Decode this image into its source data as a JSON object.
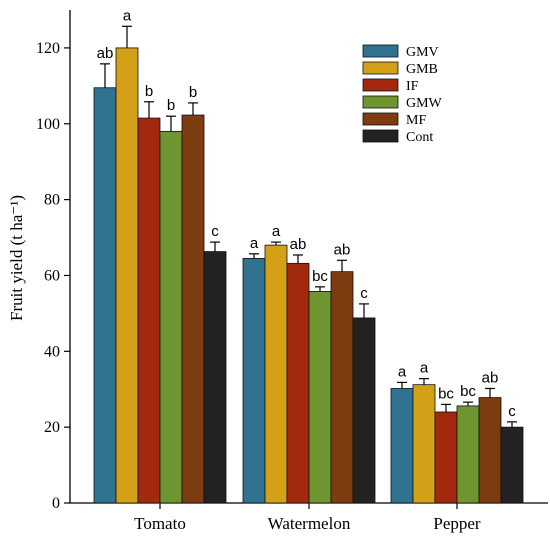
{
  "chart_data": {
    "type": "bar",
    "categories": [
      "Tomato",
      "Watermelon",
      "Pepper"
    ],
    "ylabel": "Fruit yield (t ha⁻¹)",
    "xlabel": "",
    "ylim": [
      0,
      130
    ],
    "yticks": [
      0,
      20,
      40,
      60,
      80,
      100,
      120
    ],
    "grid": false,
    "legend_position": "top-right",
    "series": [
      {
        "name": "GMV",
        "color": "#2f7391",
        "values": [
          109.5,
          64.5,
          30.2
        ],
        "errors": [
          6.3,
          1.2,
          1.6
        ],
        "letters": [
          "ab",
          "a",
          "a"
        ]
      },
      {
        "name": "GMB",
        "color": "#d4a017",
        "values": [
          120.0,
          68.0,
          31.2
        ],
        "errors": [
          5.7,
          0.8,
          1.6
        ],
        "letters": [
          "a",
          "a",
          "a"
        ]
      },
      {
        "name": "IF",
        "color": "#a3290e",
        "values": [
          101.5,
          63.2,
          24.0
        ],
        "errors": [
          4.3,
          2.2,
          2.0
        ],
        "letters": [
          "b",
          "ab",
          "bc"
        ]
      },
      {
        "name": "GMW",
        "color": "#6f9530",
        "values": [
          98.0,
          55.8,
          25.6
        ],
        "errors": [
          4.0,
          1.2,
          1.0
        ],
        "letters": [
          "b",
          "bc",
          "bc"
        ]
      },
      {
        "name": "MF",
        "color": "#7d3b10",
        "values": [
          102.3,
          61.0,
          27.8
        ],
        "errors": [
          3.2,
          3.0,
          2.4
        ],
        "letters": [
          "b",
          "ab",
          "ab"
        ]
      },
      {
        "name": "Cont",
        "color": "#222222",
        "values": [
          66.3,
          48.8,
          20.0
        ],
        "errors": [
          2.5,
          3.7,
          1.4
        ],
        "letters": [
          "c",
          "c",
          "c"
        ]
      }
    ]
  }
}
